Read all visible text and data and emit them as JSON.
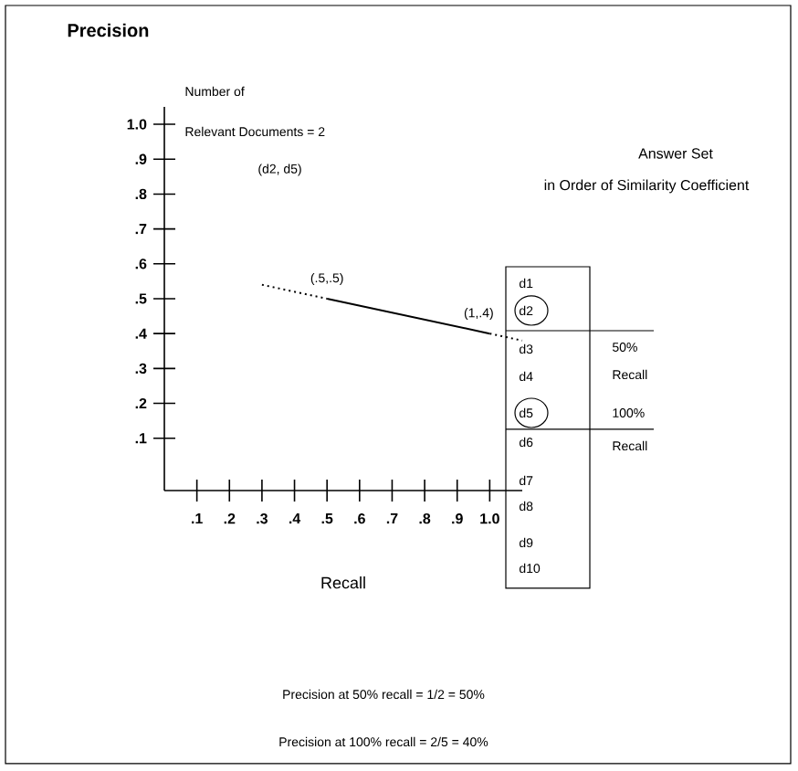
{
  "chart_data": {
    "type": "line",
    "xlabel": "Recall",
    "ylabel": "Precision",
    "xlim": [
      0,
      1.1
    ],
    "ylim": [
      -0.05,
      1.05
    ],
    "xticks": [
      {
        "value": 0.1,
        "label": ".1"
      },
      {
        "value": 0.2,
        "label": ".2"
      },
      {
        "value": 0.3,
        "label": ".3"
      },
      {
        "value": 0.4,
        "label": ".4"
      },
      {
        "value": 0.5,
        "label": ".5"
      },
      {
        "value": 0.6,
        "label": ".6"
      },
      {
        "value": 0.7,
        "label": ".7"
      },
      {
        "value": 0.8,
        "label": ".8"
      },
      {
        "value": 0.9,
        "label": ".9"
      },
      {
        "value": 1.0,
        "label": "1.0"
      }
    ],
    "yticks": [
      {
        "value": 0.1,
        "label": ".1"
      },
      {
        "value": 0.2,
        "label": ".2"
      },
      {
        "value": 0.3,
        "label": ".3"
      },
      {
        "value": 0.4,
        "label": ".4"
      },
      {
        "value": 0.5,
        "label": ".5"
      },
      {
        "value": 0.6,
        "label": ".6"
      },
      {
        "value": 0.7,
        "label": ".7"
      },
      {
        "value": 0.8,
        "label": ".8"
      },
      {
        "value": 0.9,
        "label": ".9"
      },
      {
        "value": 1.0,
        "label": "1.0"
      }
    ],
    "series": [
      {
        "color": "#000000",
        "x": [
          0.5,
          1.0
        ],
        "values": [
          0.5,
          0.4
        ],
        "line_style": "solid"
      },
      {
        "color": "#000000",
        "x": [
          0.3,
          0.5
        ],
        "values": [
          0.54,
          0.5
        ],
        "line_style": "dotted"
      },
      {
        "color": "#000000",
        "x": [
          1.0,
          1.1
        ],
        "values": [
          0.4,
          0.38
        ],
        "line_style": "dotted"
      }
    ],
    "annotations": [
      {
        "text": "(.5,.5)",
        "x": 0.5,
        "y": 0.5
      },
      {
        "text": "(1,.4)",
        "x": 1.0,
        "y": 0.4
      },
      "Number of",
      "Relevant Documents = 2",
      "(d2, d5)",
      "Answer Set",
      "in Order of Similarity Coefficient",
      "d1",
      "d2",
      "d3",
      "d4",
      "d5",
      "d6",
      "d7",
      "d8",
      "d9",
      "d10",
      "50%",
      "Recall",
      "100%",
      "Recall",
      "Precision at 50% recall = 1/2 = 50%",
      "Precision at 100% recall = 2/5 = 40%"
    ]
  }
}
